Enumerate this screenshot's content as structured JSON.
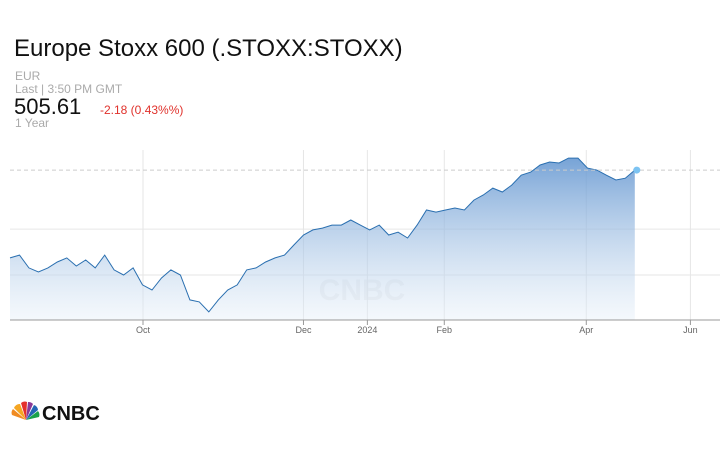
{
  "chart_data": {
    "type": "line",
    "title": "Europe Stoxx 600 (.STOXX:STOXX)",
    "currency": "EUR",
    "last_update": "Last | 3:50 PM GMT",
    "price": "505.61",
    "change": "-2.18 (0.43%%)",
    "range": "1 Year",
    "logo": "CNBC",
    "color": "#2a6fb0",
    "x": [
      0,
      4,
      8,
      12,
      16,
      20,
      24,
      28,
      32,
      36,
      40,
      44,
      48,
      52,
      56,
      60,
      64,
      68,
      72,
      76,
      80,
      84,
      88,
      92,
      96,
      100,
      104,
      108,
      112,
      116,
      120,
      124,
      128,
      132,
      136,
      140,
      144,
      148,
      152,
      156,
      160,
      164,
      168,
      172,
      176,
      180,
      184,
      188,
      192,
      196,
      200,
      204,
      208,
      212,
      216,
      220,
      224,
      228,
      232,
      236,
      240,
      244,
      248,
      252,
      256,
      260,
      264
    ],
    "values": [
      462.3,
      463.7,
      457.4,
      455.4,
      457.4,
      460.3,
      462.3,
      458.3,
      461.3,
      457.4,
      463.7,
      456.4,
      453.9,
      457.4,
      449,
      446.5,
      452.4,
      456.4,
      453.9,
      441.6,
      440.6,
      435.7,
      441.6,
      446.5,
      449,
      456.4,
      457.4,
      460.3,
      462.3,
      463.7,
      468.7,
      473.6,
      476.1,
      477,
      478.5,
      478.5,
      481,
      478.5,
      476.1,
      478.5,
      473.6,
      475,
      472.1,
      478.5,
      485.9,
      484.9,
      485.9,
      486.9,
      485.9,
      490.8,
      493.3,
      496.7,
      494.8,
      498.2,
      503.1,
      504.6,
      508.1,
      509.6,
      509.1,
      511.5,
      511.5,
      506.6,
      505.6,
      503.1,
      500.7,
      501.6,
      505.61
    ],
    "xlim": [
      0,
      300
    ],
    "ylim": [
      431.7,
      515.5
    ],
    "xticks": [
      {
        "value": 56.2,
        "label": "Oct"
      },
      {
        "value": 124,
        "label": "Dec"
      },
      {
        "value": 151,
        "label": "2024"
      },
      {
        "value": 183.5,
        "label": "Feb"
      },
      {
        "value": 243.5,
        "label": "Apr"
      },
      {
        "value": 287.5,
        "label": "Jun"
      }
    ],
    "ygrid": [
      453.9,
      476.5
    ],
    "grid": true
  }
}
